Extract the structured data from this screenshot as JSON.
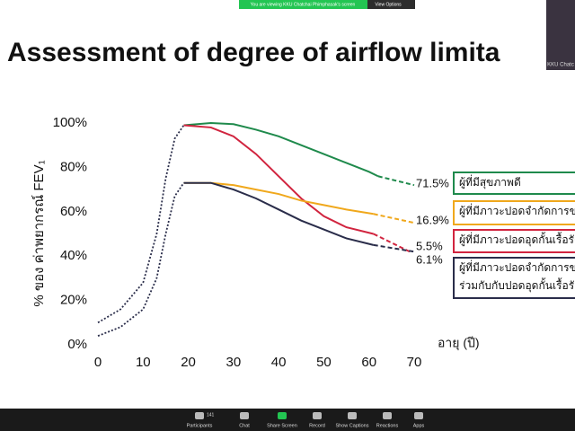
{
  "zoom_banner": {
    "text": "You are viewing KKU Chatchai Phimphasak's screen",
    "button": "View Options"
  },
  "thumbnail": {
    "label": "KKU Chatc"
  },
  "slide": {
    "title": "Assessment of degree of airflow limita"
  },
  "chart_data": {
    "type": "line",
    "y_label": "% ของ ค่าพยากรณ์ FEV₁",
    "x_label": "อายุ (ปี)",
    "xlim": [
      0,
      70
    ],
    "xticks": [
      0,
      10,
      20,
      30,
      40,
      50,
      60,
      70
    ],
    "ylim": [
      0,
      100
    ],
    "yticks": [
      {
        "value": 0,
        "label": "0%"
      },
      {
        "value": 20,
        "label": "20%"
      },
      {
        "value": 40,
        "label": "40%"
      },
      {
        "value": 60,
        "label": "60%"
      },
      {
        "value": 80,
        "label": "80%"
      },
      {
        "value": 100,
        "label": "100%"
      }
    ],
    "series": [
      {
        "color": "#2a2d4a",
        "dash": "dotted",
        "x": [
          0,
          5,
          10,
          13,
          15,
          17,
          19
        ],
        "values": [
          10,
          16,
          28,
          50,
          75,
          93,
          99
        ]
      },
      {
        "color": "#2a2d4a",
        "dash": "dotted",
        "x": [
          0,
          5,
          10,
          13,
          15,
          17,
          19
        ],
        "values": [
          4,
          8,
          16,
          30,
          50,
          67,
          73
        ]
      },
      {
        "color": "#1f8a4c",
        "dash": "solid",
        "x": [
          19,
          25,
          30,
          35,
          40,
          45,
          50,
          55,
          60,
          62
        ],
        "values": [
          99,
          100,
          99.5,
          97,
          94,
          90,
          86,
          82,
          78,
          76
        ]
      },
      {
        "color": "#1f8a4c",
        "dash": "dashed",
        "x": [
          62,
          70
        ],
        "values": [
          76,
          72
        ]
      },
      {
        "color": "#d1243f",
        "dash": "solid",
        "x": [
          19,
          25,
          30,
          35,
          40,
          45,
          50,
          55,
          61
        ],
        "values": [
          99,
          98,
          94,
          86,
          76,
          66,
          58,
          53,
          50
        ]
      },
      {
        "color": "#d1243f",
        "dash": "dashed",
        "x": [
          61,
          69
        ],
        "values": [
          50,
          42
        ]
      },
      {
        "color": "#f0a81c",
        "dash": "solid",
        "x": [
          19,
          25,
          30,
          35,
          40,
          45,
          50,
          55,
          61
        ],
        "values": [
          73,
          73,
          72,
          70,
          68,
          65,
          63,
          61,
          59
        ]
      },
      {
        "color": "#f0a81c",
        "dash": "dashed",
        "x": [
          61,
          70
        ],
        "values": [
          59,
          55
        ]
      },
      {
        "color": "#2a2d4a",
        "dash": "solid",
        "x": [
          19,
          25,
          30,
          35,
          40,
          45,
          50,
          55,
          61
        ],
        "values": [
          73,
          73,
          70,
          66,
          61,
          56,
          52,
          48,
          45
        ]
      },
      {
        "color": "#2a2d4a",
        "dash": "dashed",
        "x": [
          61,
          70
        ],
        "values": [
          45,
          42
        ]
      }
    ],
    "annotations": [
      "71.5%",
      "16.9%",
      "5.5%",
      "6.1%"
    ],
    "legend": [
      {
        "color": "#1f8a4c",
        "lines": [
          "ผู้ที่มีสุขภาพดี"
        ]
      },
      {
        "color": "#f0a81c",
        "lines": [
          "ผู้ที่มีภาวะปอดจำกัดการขยา"
        ]
      },
      {
        "color": "#d1243f",
        "lines": [
          "ผู้ที่มีภาวะปอดอุดกั้นเรื้อรัง"
        ]
      },
      {
        "color": "#2a2d4a",
        "lines": [
          "ผู้ที่มีภาวะปอดจำกัดการขยาย",
          "ร่วมกับกับปอดอุดกั้นเรื้อรัง"
        ]
      }
    ]
  },
  "toolbar": {
    "participant_count": "141",
    "buttons": [
      "Participants",
      "Chat",
      "Share Screen",
      "Record",
      "Show Captions",
      "Reactions",
      "Apps"
    ]
  }
}
